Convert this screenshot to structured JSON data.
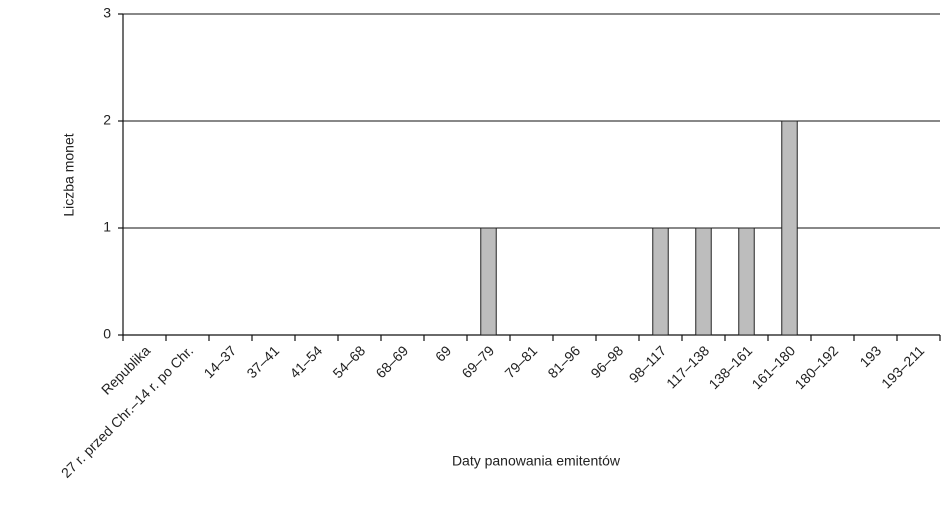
{
  "chart_data": {
    "type": "bar",
    "x_label": "Daty panowania emitentów",
    "y_label": "Liczba monet",
    "categories": [
      "Republika",
      "27 r. przed Chr.–14 r. po Chr.",
      "14–37",
      "37–41",
      "41–54",
      "54–68",
      "68–69",
      "69",
      "69–79",
      "79–81",
      "81–96",
      "96–98",
      "98–117",
      "117–138",
      "138–161",
      "161–180",
      "180–192",
      "193",
      "193–211"
    ],
    "values": [
      0,
      0,
      0,
      0,
      0,
      0,
      0,
      0,
      1,
      0,
      0,
      0,
      1,
      1,
      1,
      2,
      0,
      0,
      0
    ],
    "color": "#bdbdbd",
    "ylim": [
      0,
      3
    ],
    "yticks": [
      0,
      1,
      2,
      3
    ],
    "grid": true
  }
}
